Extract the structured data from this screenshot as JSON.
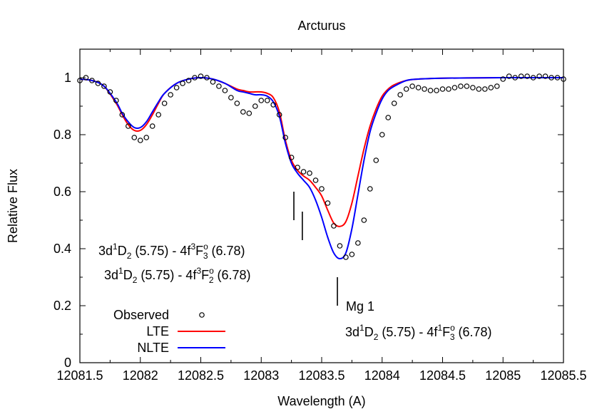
{
  "chart_data": {
    "type": "line",
    "title": "Arcturus",
    "xlabel": "Wavelength (A)",
    "ylabel": "Relative Flux",
    "xlim": [
      12081.5,
      12085.5
    ],
    "ylim": [
      0,
      1.1
    ],
    "x_ticks": [
      "12081.5",
      "12082",
      "12082.5",
      "12083",
      "12083.5",
      "12084",
      "12084.5",
      "12085",
      "12085.5"
    ],
    "y_ticks": [
      "0",
      "0.2",
      "0.4",
      "0.6",
      "0.8",
      "1"
    ],
    "grid": false,
    "legend_position": "bottom-left",
    "legend": [
      {
        "label": "Observed",
        "marker": "open-circle",
        "color": "#000000"
      },
      {
        "label": "LTE",
        "marker": "line",
        "color": "#ff0000"
      },
      {
        "label": "NLTE",
        "marker": "line",
        "color": "#0000ff"
      }
    ],
    "series": [
      {
        "name": "LTE",
        "color": "#ff0000",
        "x": [
          12081.5,
          12081.6,
          12081.7,
          12081.8,
          12081.85,
          12081.9,
          12081.95,
          12082.0,
          12082.05,
          12082.1,
          12082.15,
          12082.2,
          12082.3,
          12082.4,
          12082.5,
          12082.6,
          12082.7,
          12082.8,
          12082.85,
          12082.9,
          12082.95,
          12083.0,
          12083.05,
          12083.1,
          12083.15,
          12083.2,
          12083.25,
          12083.3,
          12083.35,
          12083.4,
          12083.45,
          12083.5,
          12083.55,
          12083.6,
          12083.65,
          12083.7,
          12083.75,
          12083.8,
          12083.85,
          12083.9,
          12083.95,
          12084.0,
          12084.05,
          12084.1,
          12084.2,
          12084.3,
          12084.5,
          12084.7,
          12085.0,
          12085.5
        ],
        "y": [
          0.995,
          0.99,
          0.97,
          0.91,
          0.87,
          0.835,
          0.815,
          0.815,
          0.835,
          0.87,
          0.91,
          0.945,
          0.98,
          0.995,
          1.0,
          0.995,
          0.98,
          0.96,
          0.955,
          0.95,
          0.95,
          0.95,
          0.945,
          0.93,
          0.88,
          0.78,
          0.71,
          0.675,
          0.655,
          0.64,
          0.615,
          0.585,
          0.535,
          0.49,
          0.478,
          0.495,
          0.56,
          0.655,
          0.75,
          0.83,
          0.89,
          0.935,
          0.96,
          0.975,
          0.99,
          0.995,
          0.998,
          0.999,
          1.0,
          1.0
        ]
      },
      {
        "name": "NLTE",
        "color": "#0000ff",
        "x": [
          12081.5,
          12081.6,
          12081.7,
          12081.8,
          12081.85,
          12081.9,
          12081.95,
          12082.0,
          12082.05,
          12082.1,
          12082.15,
          12082.2,
          12082.3,
          12082.4,
          12082.5,
          12082.6,
          12082.7,
          12082.8,
          12082.85,
          12082.9,
          12082.95,
          12083.0,
          12083.05,
          12083.1,
          12083.15,
          12083.2,
          12083.25,
          12083.3,
          12083.35,
          12083.4,
          12083.45,
          12083.5,
          12083.55,
          12083.6,
          12083.65,
          12083.7,
          12083.75,
          12083.8,
          12083.85,
          12083.9,
          12083.95,
          12084.0,
          12084.05,
          12084.1,
          12084.2,
          12084.3,
          12084.5,
          12084.7,
          12085.0,
          12085.5
        ],
        "y": [
          0.995,
          0.99,
          0.97,
          0.915,
          0.875,
          0.845,
          0.825,
          0.825,
          0.845,
          0.88,
          0.915,
          0.945,
          0.98,
          0.995,
          1.0,
          0.995,
          0.98,
          0.955,
          0.95,
          0.945,
          0.94,
          0.94,
          0.935,
          0.915,
          0.865,
          0.77,
          0.7,
          0.665,
          0.64,
          0.615,
          0.57,
          0.51,
          0.44,
          0.385,
          0.365,
          0.385,
          0.47,
          0.59,
          0.71,
          0.81,
          0.875,
          0.925,
          0.955,
          0.97,
          0.99,
          0.995,
          0.998,
          0.999,
          1.0,
          1.0
        ]
      },
      {
        "name": "Observed",
        "color": "#000000",
        "x": [
          12081.5,
          12081.55,
          12081.6,
          12081.65,
          12081.7,
          12081.75,
          12081.8,
          12081.85,
          12081.9,
          12081.95,
          12082.0,
          12082.05,
          12082.1,
          12082.15,
          12082.2,
          12082.25,
          12082.3,
          12082.35,
          12082.4,
          12082.45,
          12082.5,
          12082.55,
          12082.6,
          12082.65,
          12082.7,
          12082.75,
          12082.8,
          12082.85,
          12082.9,
          12082.95,
          12083.0,
          12083.05,
          12083.1,
          12083.15,
          12083.2,
          12083.25,
          12083.3,
          12083.35,
          12083.4,
          12083.45,
          12083.5,
          12083.55,
          12083.6,
          12083.65,
          12083.7,
          12083.75,
          12083.8,
          12083.85,
          12083.9,
          12083.95,
          12084.0,
          12084.05,
          12084.1,
          12084.15,
          12084.2,
          12084.25,
          12084.3,
          12084.35,
          12084.4,
          12084.45,
          12084.5,
          12084.55,
          12084.6,
          12084.65,
          12084.7,
          12084.75,
          12084.8,
          12084.85,
          12084.9,
          12084.95,
          12085.0,
          12085.05,
          12085.1,
          12085.15,
          12085.2,
          12085.25,
          12085.3,
          12085.35,
          12085.4,
          12085.45,
          12085.5
        ],
        "y": [
          0.99,
          1.0,
          0.99,
          0.98,
          0.97,
          0.95,
          0.92,
          0.87,
          0.83,
          0.79,
          0.78,
          0.79,
          0.83,
          0.87,
          0.91,
          0.94,
          0.965,
          0.98,
          0.99,
          1.0,
          1.005,
          1.0,
          0.985,
          0.97,
          0.955,
          0.93,
          0.91,
          0.88,
          0.875,
          0.9,
          0.92,
          0.92,
          0.905,
          0.87,
          0.79,
          0.72,
          0.685,
          0.67,
          0.665,
          0.64,
          0.61,
          0.56,
          0.48,
          0.41,
          0.37,
          0.38,
          0.42,
          0.5,
          0.61,
          0.71,
          0.8,
          0.86,
          0.91,
          0.94,
          0.96,
          0.97,
          0.965,
          0.96,
          0.955,
          0.955,
          0.96,
          0.96,
          0.965,
          0.97,
          0.97,
          0.965,
          0.96,
          0.96,
          0.965,
          0.97,
          0.995,
          1.005,
          1.0,
          1.005,
          1.005,
          1.0,
          1.005,
          1.005,
          1.0,
          1.0,
          0.995
        ]
      }
    ],
    "annotations": [
      {
        "id": "d2f3",
        "label": {
          "term": "3d",
          "t_sup": "1",
          "t_letter": "D",
          "t_sub": "2",
          "e1": " (5.75) - 4f",
          "u_sup": "3",
          "u_letter": "F",
          "u_sup2": "o",
          "u_sub": "3",
          "e2": " (6.78)"
        },
        "marker": {
          "x": 12083.27,
          "y_from": 0.5,
          "y_to": 0.6
        }
      },
      {
        "id": "d2f2",
        "label": {
          "term": "3d",
          "t_sup": "1",
          "t_letter": "D",
          "t_sub": "2",
          "e1": " (5.75) - 4f",
          "u_sup": "3",
          "u_letter": "F",
          "u_sup2": "o",
          "u_sub": "2",
          "e2": " (6.78)"
        },
        "marker": {
          "x": 12083.34,
          "y_from": 0.43,
          "y_to": 0.53
        }
      },
      {
        "id": "mg",
        "label": {
          "text": "Mg 1"
        },
        "marker": {
          "x": 12083.63,
          "y_from": 0.2,
          "y_to": 0.3
        }
      },
      {
        "id": "d2f1",
        "label": {
          "term": "3d",
          "t_sup": "1",
          "t_letter": "D",
          "t_sub": "2",
          "e1": " (5.75) - 4f",
          "u_sup": "1",
          "u_letter": "F",
          "u_sup2": "o",
          "u_sub": "3",
          "e2": " (6.78)"
        }
      }
    ]
  }
}
